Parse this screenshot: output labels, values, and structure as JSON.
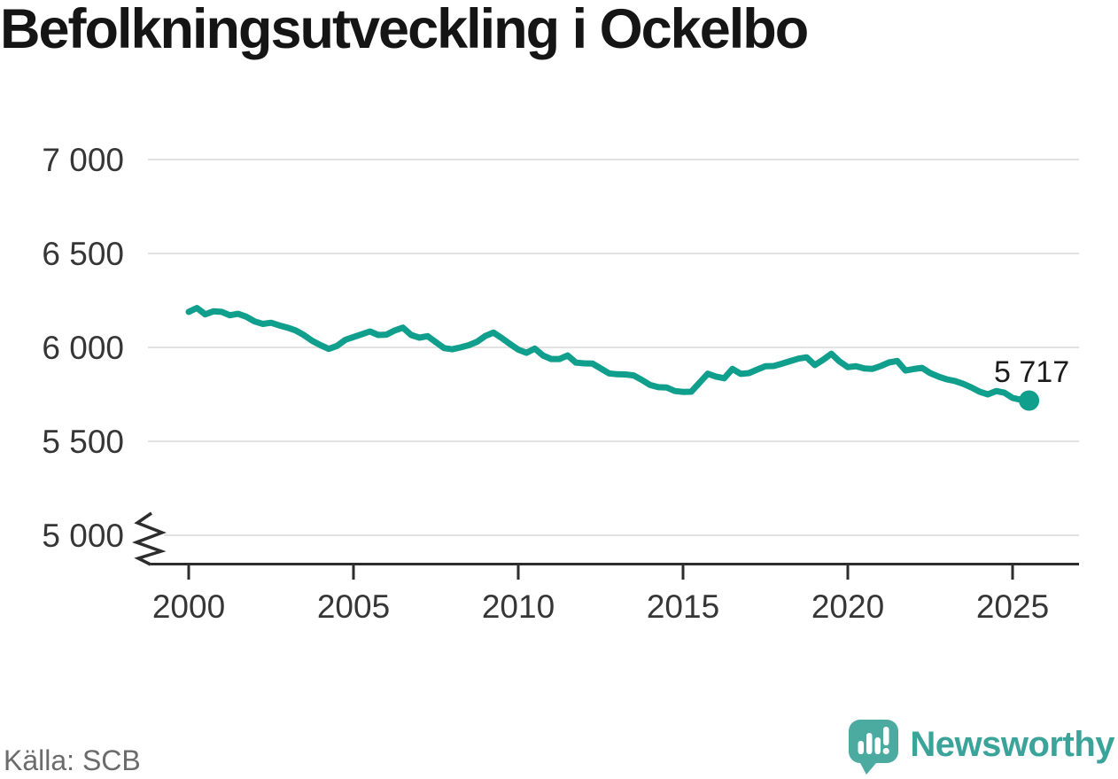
{
  "page": {
    "title": "Befolkningsutveckling i Ockelbo",
    "source": "Källa: SCB"
  },
  "brand": {
    "name": "Newsworthy"
  },
  "colors": {
    "line": "#109e8d",
    "grid": "#e2e2e2",
    "axis": "#2d2d2d",
    "tick_text": "#363636",
    "title_text": "#151515",
    "source_text": "#6b6b6b",
    "brand_text_teal": "#3aa39a",
    "brand_icon_teal": "#4caba1",
    "background": "#ffffff"
  },
  "chart_data": {
    "type": "line",
    "title": "Befolkningsutveckling i Ockelbo",
    "xlabel": "",
    "ylabel": "",
    "x_ticks": [
      "2000",
      "2005",
      "2010",
      "2015",
      "2020",
      "2025"
    ],
    "y_ticks": [
      "7 000",
      "6 500",
      "6 000",
      "5 500",
      "5 000"
    ],
    "xlim": [
      1998.8,
      2027.0
    ],
    "ylim": [
      5000,
      7000
    ],
    "y_axis_break": true,
    "grid": "horizontal",
    "legend": "none",
    "annotation": {
      "x": 2025.5,
      "y": 5717,
      "label": "5 717"
    },
    "points": [
      [
        2000.0,
        6189
      ],
      [
        2000.25,
        6210
      ],
      [
        2000.5,
        6176
      ],
      [
        2000.75,
        6192
      ],
      [
        2001.0,
        6189
      ],
      [
        2001.25,
        6171
      ],
      [
        2001.5,
        6179
      ],
      [
        2001.75,
        6163
      ],
      [
        2002.0,
        6138
      ],
      [
        2002.25,
        6125
      ],
      [
        2002.5,
        6131
      ],
      [
        2002.75,
        6117
      ],
      [
        2003.0,
        6105
      ],
      [
        2003.25,
        6090
      ],
      [
        2003.5,
        6065
      ],
      [
        2003.75,
        6035
      ],
      [
        2004.0,
        6012
      ],
      [
        2004.25,
        5992
      ],
      [
        2004.5,
        6008
      ],
      [
        2004.75,
        6040
      ],
      [
        2005.0,
        6055
      ],
      [
        2005.25,
        6070
      ],
      [
        2005.5,
        6085
      ],
      [
        2005.75,
        6066
      ],
      [
        2006.0,
        6068
      ],
      [
        2006.25,
        6090
      ],
      [
        2006.5,
        6105
      ],
      [
        2006.75,
        6066
      ],
      [
        2007.0,
        6052
      ],
      [
        2007.25,
        6060
      ],
      [
        2007.5,
        6028
      ],
      [
        2007.75,
        5996
      ],
      [
        2008.0,
        5990
      ],
      [
        2008.25,
        6000
      ],
      [
        2008.5,
        6012
      ],
      [
        2008.75,
        6030
      ],
      [
        2009.0,
        6061
      ],
      [
        2009.25,
        6079
      ],
      [
        2009.5,
        6050
      ],
      [
        2009.75,
        6018
      ],
      [
        2010.0,
        5988
      ],
      [
        2010.25,
        5971
      ],
      [
        2010.5,
        5994
      ],
      [
        2010.75,
        5957
      ],
      [
        2011.0,
        5938
      ],
      [
        2011.25,
        5938
      ],
      [
        2011.5,
        5957
      ],
      [
        2011.75,
        5919
      ],
      [
        2012.0,
        5915
      ],
      [
        2012.25,
        5914
      ],
      [
        2012.5,
        5888
      ],
      [
        2012.75,
        5862
      ],
      [
        2013.0,
        5857
      ],
      [
        2013.25,
        5856
      ],
      [
        2013.5,
        5851
      ],
      [
        2013.75,
        5827
      ],
      [
        2014.0,
        5800
      ],
      [
        2014.25,
        5788
      ],
      [
        2014.5,
        5787
      ],
      [
        2014.75,
        5768
      ],
      [
        2015.0,
        5763
      ],
      [
        2015.25,
        5764
      ],
      [
        2015.5,
        5812
      ],
      [
        2015.75,
        5860
      ],
      [
        2016.0,
        5845
      ],
      [
        2016.25,
        5836
      ],
      [
        2016.5,
        5886
      ],
      [
        2016.75,
        5859
      ],
      [
        2017.0,
        5863
      ],
      [
        2017.25,
        5882
      ],
      [
        2017.5,
        5900
      ],
      [
        2017.75,
        5901
      ],
      [
        2018.0,
        5913
      ],
      [
        2018.25,
        5927
      ],
      [
        2018.5,
        5940
      ],
      [
        2018.75,
        5947
      ],
      [
        2019.0,
        5906
      ],
      [
        2019.25,
        5934
      ],
      [
        2019.5,
        5966
      ],
      [
        2019.75,
        5925
      ],
      [
        2020.0,
        5895
      ],
      [
        2020.25,
        5900
      ],
      [
        2020.5,
        5888
      ],
      [
        2020.75,
        5886
      ],
      [
        2021.0,
        5901
      ],
      [
        2021.25,
        5920
      ],
      [
        2021.5,
        5928
      ],
      [
        2021.75,
        5877
      ],
      [
        2022.0,
        5885
      ],
      [
        2022.25,
        5891
      ],
      [
        2022.5,
        5863
      ],
      [
        2022.75,
        5845
      ],
      [
        2023.0,
        5830
      ],
      [
        2023.25,
        5821
      ],
      [
        2023.5,
        5806
      ],
      [
        2023.75,
        5787
      ],
      [
        2024.0,
        5764
      ],
      [
        2024.25,
        5750
      ],
      [
        2024.5,
        5768
      ],
      [
        2024.75,
        5759
      ],
      [
        2025.0,
        5731
      ],
      [
        2025.25,
        5721
      ],
      [
        2025.5,
        5717
      ]
    ]
  }
}
